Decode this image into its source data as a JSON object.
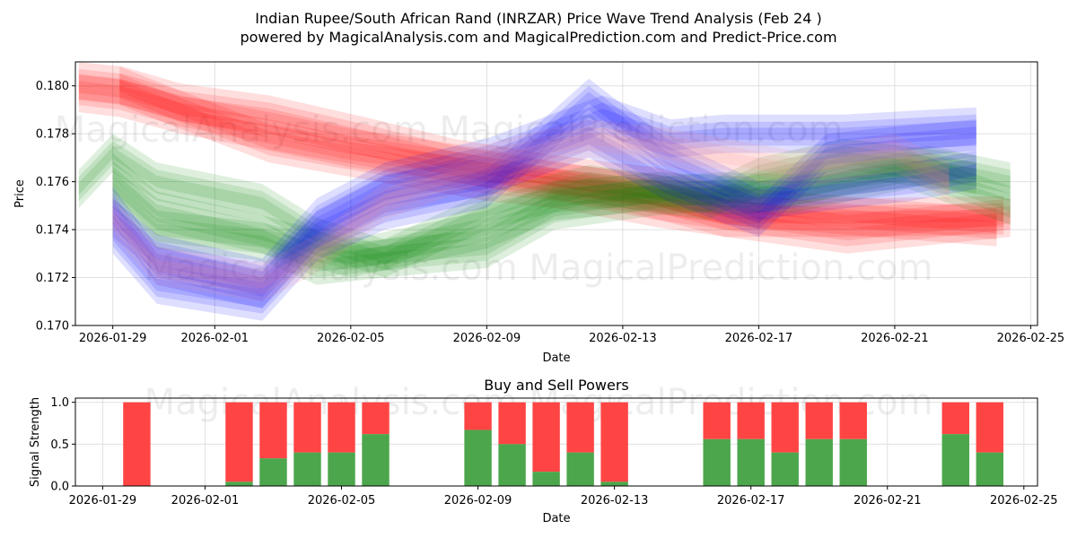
{
  "chart_data": [
    {
      "type": "area",
      "title_line1": "Indian Rupee/South African Rand (INRZAR) Price Wave Trend Analysis (Feb 24 )",
      "title_line2": "powered by MagicalAnalysis.com and MagicalPrediction.com and Predict-Price.com",
      "xlabel": "Date",
      "ylabel": "Price",
      "xlim": [
        "2026-01-27.9",
        "2026-02-25.2"
      ],
      "ylim": [
        0.17,
        0.181
      ],
      "x_ticks": [
        "2026-01-29",
        "2026-02-01",
        "2026-02-05",
        "2026-02-09",
        "2026-02-13",
        "2026-02-17",
        "2026-02-21",
        "2026-02-25"
      ],
      "y_ticks": [
        "0.170",
        "0.172",
        "0.174",
        "0.176",
        "0.178",
        "0.180"
      ],
      "grid": true,
      "watermark": "MagicalAnalysis.com   MagicalPrediction.com",
      "colors": {
        "red": "#ff0000",
        "green": "#008000",
        "blue": "#0000ff",
        "pink": "#ff8080"
      },
      "series": [
        {
          "name": "red-wave-1",
          "color": "red",
          "x": [
            0,
            1.2,
            3,
            5.6,
            8,
            10.5,
            13,
            16,
            19,
            22.6,
            27.4
          ],
          "y": [
            0.1797,
            0.1795,
            0.1788,
            0.1781,
            0.1774,
            0.1769,
            0.1763,
            0.1756,
            0.1745,
            0.1738,
            0.1745
          ]
        },
        {
          "name": "red-wave-2",
          "color": "red",
          "x": [
            0,
            1.3,
            3,
            5.6,
            8.4,
            11,
            14,
            17,
            19,
            22.5,
            27
          ],
          "y": [
            0.1802,
            0.18,
            0.1793,
            0.1788,
            0.1779,
            0.177,
            0.1763,
            0.1758,
            0.175,
            0.1746,
            0.1741
          ]
        },
        {
          "name": "red-wave-3",
          "color": "red",
          "x": [
            1.2,
            3,
            5.6,
            8.4,
            10,
            12,
            14,
            17,
            19,
            22.6,
            27.2
          ],
          "y": [
            0.18,
            0.179,
            0.1776,
            0.1769,
            0.1765,
            0.176,
            0.1757,
            0.1749,
            0.1745,
            0.1745,
            0.1746
          ]
        },
        {
          "name": "green-wave-1",
          "color": "green",
          "x": [
            0,
            1,
            2.3,
            5.4,
            7,
            9,
            12,
            14,
            17,
            19,
            21,
            24.4,
            27.4
          ],
          "y": [
            0.1757,
            0.1772,
            0.176,
            0.1751,
            0.1737,
            0.1728,
            0.1732,
            0.1748,
            0.1754,
            0.1756,
            0.1755,
            0.1765,
            0.175
          ]
        },
        {
          "name": "green-wave-2",
          "color": "green",
          "x": [
            1,
            2.3,
            5.4,
            8,
            12,
            14,
            17,
            19.6,
            22.5,
            25,
            27.4
          ],
          "y": [
            0.1764,
            0.1748,
            0.1738,
            0.1728,
            0.174,
            0.1752,
            0.1756,
            0.1754,
            0.1762,
            0.1767,
            0.176
          ]
        },
        {
          "name": "green-wave-3",
          "color": "green",
          "x": [
            1,
            2.3,
            5.4,
            7,
            9,
            12,
            15,
            18.5,
            20,
            22.5,
            26.4
          ],
          "y": [
            0.1757,
            0.174,
            0.1735,
            0.1725,
            0.1728,
            0.1748,
            0.1759,
            0.1752,
            0.1762,
            0.177,
            0.1763
          ]
        },
        {
          "name": "blue-wave-1",
          "color": "blue",
          "x": [
            1,
            2.3,
            5.4,
            7,
            9,
            12,
            15,
            17.3,
            20,
            22,
            24.5,
            26.4
          ],
          "y": [
            0.1738,
            0.1717,
            0.171,
            0.1735,
            0.1748,
            0.1757,
            0.1795,
            0.177,
            0.1752,
            0.1756,
            0.176,
            0.1765
          ]
        },
        {
          "name": "blue-wave-2",
          "color": "blue",
          "x": [
            1,
            2.3,
            5.4,
            7,
            9,
            12,
            15.4,
            17.4,
            19,
            22.5,
            25,
            26.4
          ],
          "y": [
            0.1745,
            0.173,
            0.172,
            0.1745,
            0.176,
            0.177,
            0.1788,
            0.1778,
            0.178,
            0.178,
            0.1782,
            0.1783
          ]
        },
        {
          "name": "blue-wave-3",
          "color": "blue",
          "x": [
            1,
            2.3,
            5.4,
            7,
            9,
            12,
            15,
            17.3,
            20,
            22,
            24,
            26.4
          ],
          "y": [
            0.175,
            0.1725,
            0.1715,
            0.174,
            0.1755,
            0.1762,
            0.1778,
            0.176,
            0.1745,
            0.1772,
            0.1775,
            0.1778
          ]
        },
        {
          "name": "pink-wave-1",
          "color": "pink",
          "x": [
            1,
            2.3,
            5.4,
            7,
            9,
            12,
            15,
            17,
            21,
            24,
            25.6
          ],
          "y": [
            0.1745,
            0.1725,
            0.1718,
            0.173,
            0.1752,
            0.1768,
            0.1778,
            0.1775,
            0.1765,
            0.1772,
            0.176
          ]
        }
      ]
    },
    {
      "type": "bar",
      "title": "Buy and Sell Powers",
      "xlabel": "Date",
      "ylabel": "Signal Strength",
      "ylim": [
        0,
        1.05
      ],
      "y_ticks": [
        "0.0",
        "0.5",
        "1.0"
      ],
      "x_ticks": [
        "2026-01-29",
        "2026-02-01",
        "2026-02-05",
        "2026-02-09",
        "2026-02-13",
        "2026-02-17",
        "2026-02-21",
        "2026-02-25"
      ],
      "colors": {
        "buy": "#4ca64c",
        "sell": "#ff4444"
      },
      "bars": [
        {
          "date": "2026-01-30",
          "buy": 0.0
        },
        {
          "date": "2026-02-02",
          "buy": 0.05
        },
        {
          "date": "2026-02-03",
          "buy": 0.33
        },
        {
          "date": "2026-02-04",
          "buy": 0.4
        },
        {
          "date": "2026-02-05",
          "buy": 0.4
        },
        {
          "date": "2026-02-06",
          "buy": 0.62
        },
        {
          "date": "2026-02-09",
          "buy": 0.67
        },
        {
          "date": "2026-02-10",
          "buy": 0.5
        },
        {
          "date": "2026-02-11",
          "buy": 0.17
        },
        {
          "date": "2026-02-12",
          "buy": 0.4
        },
        {
          "date": "2026-02-13",
          "buy": 0.05
        },
        {
          "date": "2026-02-16",
          "buy": 0.56
        },
        {
          "date": "2026-02-17",
          "buy": 0.56
        },
        {
          "date": "2026-02-18",
          "buy": 0.4
        },
        {
          "date": "2026-02-19",
          "buy": 0.56
        },
        {
          "date": "2026-02-20",
          "buy": 0.56
        },
        {
          "date": "2026-02-23",
          "buy": 0.62
        },
        {
          "date": "2026-02-24",
          "buy": 0.4
        }
      ]
    }
  ]
}
